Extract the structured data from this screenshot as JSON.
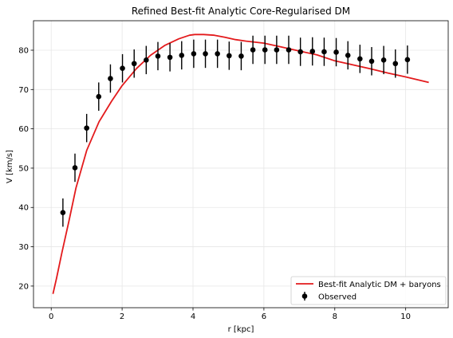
{
  "chart_data": {
    "type": "scatter",
    "title": "Refined Best-fit Analytic Core-Regularised DM",
    "xlabel": "r [kpc]",
    "ylabel": "V [km/s]",
    "xlim": [
      -0.5,
      11.2
    ],
    "ylim": [
      14.5,
      87.5
    ],
    "xticks": [
      0,
      2,
      4,
      6,
      8,
      10
    ],
    "yticks": [
      20,
      30,
      40,
      50,
      60,
      70,
      80
    ],
    "grid": true,
    "legend_position": "lower right",
    "series": [
      {
        "name": "Best-fit Analytic DM + baryons",
        "kind": "line",
        "color": "#e31a1c",
        "x": [
          0.05,
          0.15,
          0.3,
          0.5,
          0.7,
          1.0,
          1.35,
          1.7,
          2.0,
          2.4,
          2.8,
          3.2,
          3.6,
          3.9,
          4.05,
          4.3,
          4.6,
          4.9,
          5.2,
          5.5,
          6.0,
          6.5,
          7.0,
          7.5,
          8.0,
          8.5,
          9.0,
          9.5,
          10.0,
          10.65
        ],
        "y": [
          18,
          22,
          28.5,
          36.5,
          45,
          54.5,
          61.8,
          67,
          71,
          75.3,
          78.7,
          81.2,
          82.9,
          83.8,
          84,
          84,
          83.8,
          83.3,
          82.7,
          82.3,
          81.8,
          80.8,
          79.8,
          78.8,
          77.3,
          76.3,
          75.3,
          74.2,
          73.2,
          71.8
        ]
      },
      {
        "name": "Observed",
        "kind": "errorbar",
        "color": "#000000",
        "x": [
          0.33,
          0.67,
          1.0,
          1.34,
          1.67,
          2.01,
          2.34,
          2.68,
          3.01,
          3.35,
          3.68,
          4.02,
          4.35,
          4.69,
          5.02,
          5.36,
          5.69,
          6.03,
          6.36,
          6.7,
          7.03,
          7.37,
          7.7,
          8.04,
          8.37,
          8.71,
          9.04,
          9.38,
          9.71,
          10.05
        ],
        "y": [
          38.7,
          50.1,
          60.2,
          68.2,
          72.8,
          75.4,
          76.6,
          77.5,
          78.5,
          78.2,
          78.7,
          79.1,
          79.1,
          79.1,
          78.6,
          78.5,
          80.1,
          80.1,
          80.1,
          80.1,
          79.6,
          79.7,
          79.6,
          79.5,
          78.7,
          77.8,
          77.2,
          77.5,
          76.6,
          77.6
        ],
        "yerr": [
          3.6,
          3.6,
          3.6,
          3.6,
          3.6,
          3.6,
          3.6,
          3.6,
          3.6,
          3.6,
          3.6,
          3.6,
          3.6,
          3.6,
          3.6,
          3.6,
          3.6,
          3.6,
          3.6,
          3.6,
          3.6,
          3.6,
          3.6,
          3.6,
          3.6,
          3.6,
          3.6,
          3.6,
          3.6,
          3.6
        ]
      }
    ]
  }
}
